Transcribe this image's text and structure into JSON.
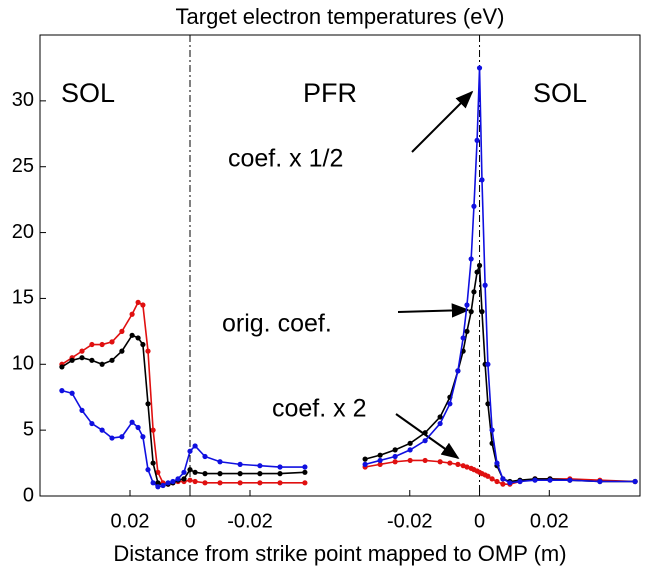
{
  "chart_data": {
    "type": "line",
    "title": "Target electron temperatures (eV)",
    "xlabel": "Distance from strike point mapped to OMP (m)",
    "ylim": [
      0,
      35
    ],
    "yticks": [
      0,
      5,
      10,
      15,
      20,
      25,
      30
    ],
    "regions": [
      "SOL",
      "PFR",
      "SOL"
    ],
    "annotations": [
      {
        "text": "coef. x 1/2",
        "color": "#1010e0"
      },
      {
        "text": "orig. coef.",
        "color": "#000000"
      },
      {
        "text": "coef. x 2",
        "color": "#e01010"
      }
    ],
    "panels": [
      {
        "xlim": [
          0.05,
          -0.05
        ],
        "xticks": [
          0.02,
          0,
          -0.02
        ],
        "x": [
          0.0427,
          0.0393,
          0.036,
          0.0327,
          0.0293,
          0.026,
          0.0227,
          0.0193,
          0.0173,
          0.0157,
          0.014,
          0.0123,
          0.0107,
          0.009,
          0.0073,
          0.0057,
          0.004,
          0.002,
          0,
          -0.0017,
          -0.005,
          -0.01,
          -0.0167,
          -0.0233,
          -0.03,
          -0.0383
        ],
        "series": [
          {
            "color": "#e01010",
            "values": [
              10.0,
              10.5,
              11.0,
              11.5,
              11.5,
              11.7,
              12.5,
              13.8,
              14.7,
              14.5,
              11,
              5,
              1.8,
              1.0,
              0.9,
              1.0,
              1.1,
              1.1,
              1.2,
              1.1,
              1.0,
              1.0,
              1.0,
              1.0,
              1.0,
              1.0
            ]
          },
          {
            "color": "#000000",
            "values": [
              9.8,
              10.3,
              10.5,
              10.3,
              10.0,
              10.3,
              11.0,
              12.2,
              12.0,
              11.5,
              7.0,
              2.5,
              1.0,
              0.8,
              0.9,
              1.0,
              1.2,
              1.3,
              2.0,
              1.8,
              1.7,
              1.7,
              1.7,
              1.7,
              1.7,
              1.8
            ]
          },
          {
            "color": "#1010e0",
            "values": [
              8.0,
              7.8,
              6.5,
              5.5,
              5.0,
              4.4,
              4.5,
              5.6,
              5.2,
              4.5,
              2.0,
              1.0,
              0.7,
              0.8,
              1.0,
              1.1,
              1.3,
              1.8,
              3.4,
              3.8,
              3.0,
              2.6,
              2.4,
              2.3,
              2.2,
              2.2
            ]
          }
        ]
      },
      {
        "xlim": [
          -0.04,
          0.046
        ],
        "xticks": [
          -0.02,
          0,
          0.02
        ],
        "x": [
          -0.0328,
          -0.0285,
          -0.0242,
          -0.0199,
          -0.0156,
          -0.0113,
          -0.0085,
          -0.0062,
          -0.0047,
          -0.0036,
          -0.0024,
          -0.0016,
          -0.0007,
          0,
          0.0007,
          0.0016,
          0.0024,
          0.0036,
          0.005,
          0.0067,
          0.0087,
          0.0116,
          0.0159,
          0.0202,
          0.0259,
          0.0345,
          0.0446
        ],
        "series": [
          {
            "color": "#e01010",
            "values": [
              2.2,
              2.4,
              2.6,
              2.7,
              2.7,
              2.6,
              2.5,
              2.4,
              2.3,
              2.2,
              2.1,
              2.0,
              1.9,
              1.8,
              1.7,
              1.6,
              1.5,
              1.3,
              1.1,
              0.9,
              0.9,
              1.1,
              1.3,
              1.3,
              1.3,
              1.2,
              1.1
            ]
          },
          {
            "color": "#000000",
            "values": [
              2.8,
              3.1,
              3.5,
              4.0,
              4.8,
              6.0,
              7.5,
              9.5,
              11,
              12.5,
              14,
              15.5,
              17,
              17.5,
              14,
              10,
              7,
              4,
              2.3,
              1.3,
              1.1,
              1.2,
              1.3,
              1.3,
              1.2,
              1.1,
              1.1
            ]
          },
          {
            "color": "#1010e0",
            "values": [
              2.4,
              2.7,
              3.0,
              3.5,
              4.2,
              5.5,
              7,
              9.5,
              12,
              14.5,
              18,
              22,
              27,
              32.5,
              24,
              16,
              10,
              5,
              2.5,
              1.3,
              1.0,
              1.1,
              1.2,
              1.2,
              1.2,
              1.1,
              1.1
            ]
          }
        ]
      }
    ]
  }
}
